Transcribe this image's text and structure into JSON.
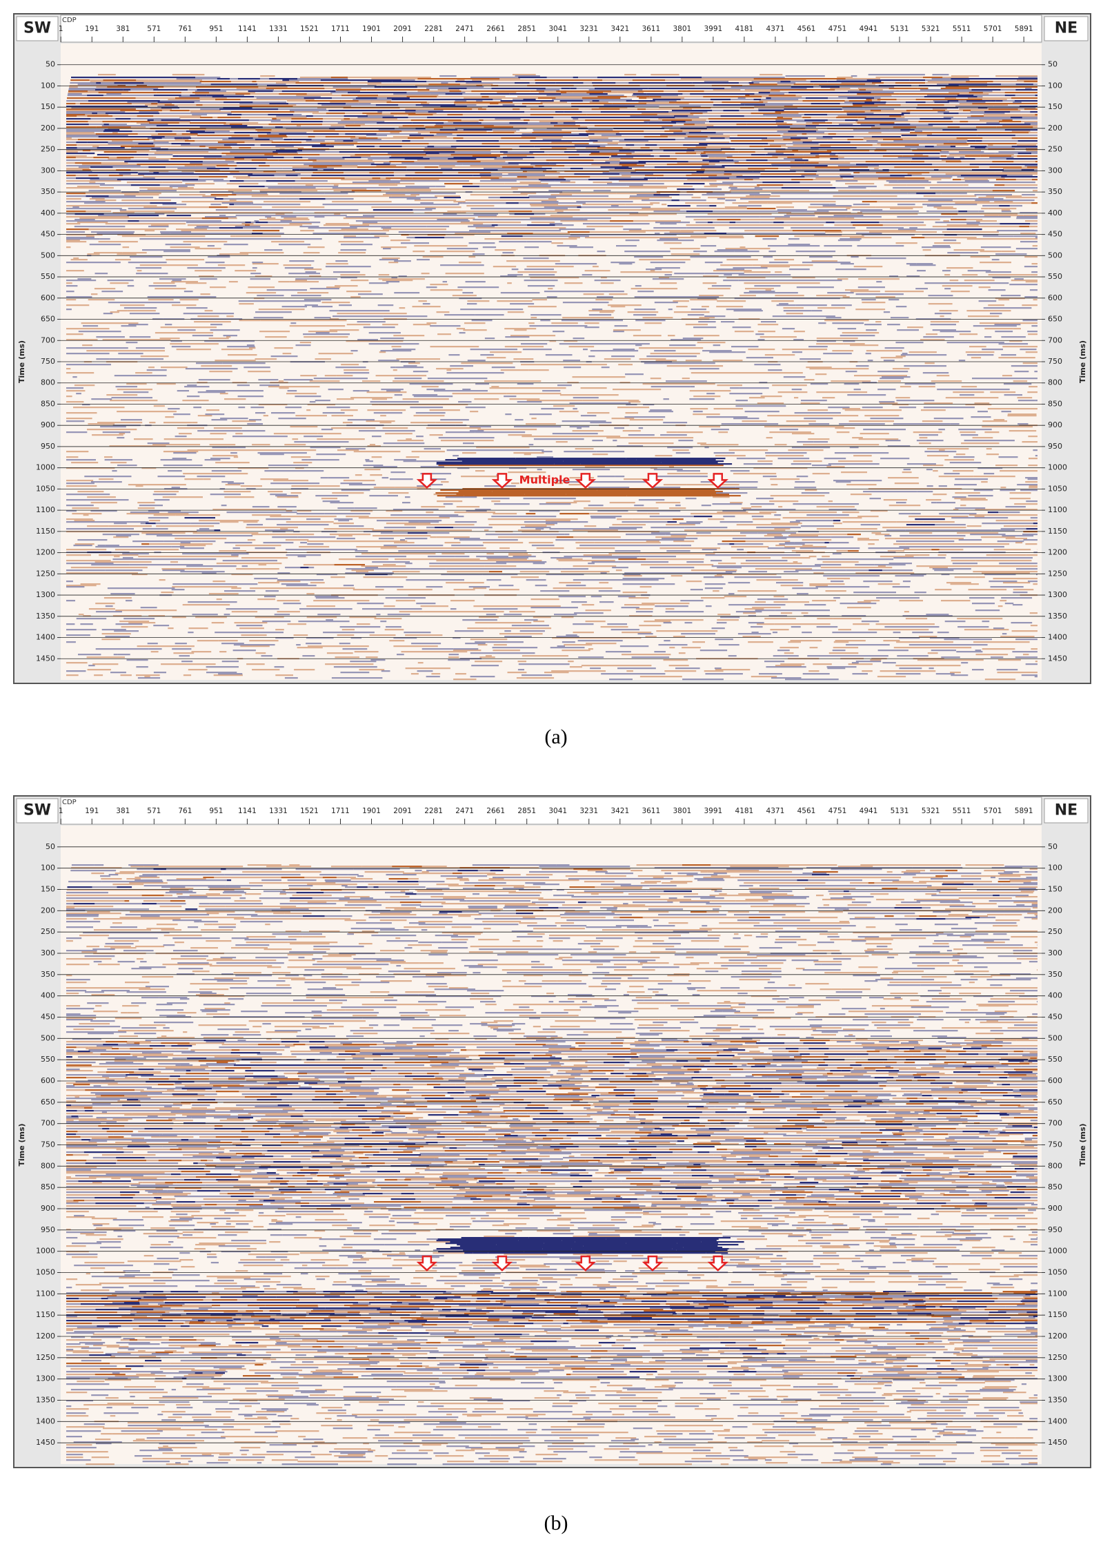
{
  "panels": [
    {
      "left_label": "SW",
      "right_label": "NE",
      "cdp_label": "CDP",
      "xlim": [
        0,
        6000
      ],
      "xticks": [
        1,
        191,
        381,
        571,
        761,
        951,
        1141,
        1331,
        1521,
        1711,
        1901,
        2091,
        2281,
        2471,
        2661,
        2851,
        3041,
        3231,
        3421,
        3611,
        3801,
        3991,
        4181,
        4371,
        4561,
        4751,
        4941,
        5131,
        5321,
        5511,
        5701,
        5891
      ],
      "ylim": [
        0,
        1500
      ],
      "yticks": [
        50,
        100,
        150,
        200,
        250,
        300,
        350,
        400,
        450,
        500,
        550,
        600,
        650,
        700,
        750,
        800,
        850,
        900,
        950,
        1000,
        1050,
        1100,
        1150,
        1200,
        1250,
        1300,
        1350,
        1400,
        1450
      ],
      "ylabel": "Time (ms)",
      "annotation": "Multiple",
      "caption": "(a)"
    },
    {
      "left_label": "SW",
      "right_label": "NE",
      "cdp_label": "CDP",
      "xlim": [
        0,
        6000
      ],
      "xticks": [
        1,
        191,
        381,
        571,
        761,
        951,
        1141,
        1331,
        1521,
        1711,
        1901,
        2091,
        2281,
        2471,
        2661,
        2851,
        3041,
        3231,
        3421,
        3611,
        3801,
        3991,
        4181,
        4371,
        4561,
        4751,
        4941,
        5131,
        5321,
        5511,
        5701,
        5891
      ],
      "ylim": [
        0,
        1500
      ],
      "yticks": [
        50,
        100,
        150,
        200,
        250,
        300,
        350,
        400,
        450,
        500,
        550,
        600,
        650,
        700,
        750,
        800,
        850,
        900,
        950,
        1000,
        1050,
        1100,
        1150,
        1200,
        1250,
        1300,
        1350,
        1400,
        1450
      ],
      "ylabel": "Time (ms)",
      "caption": "(b)"
    }
  ]
}
